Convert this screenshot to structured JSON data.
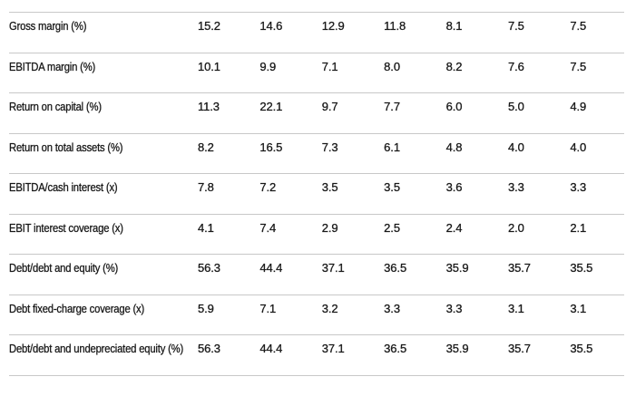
{
  "colors": {
    "text": "#191919",
    "divider": "#c8c8c8",
    "background": "#ffffff"
  },
  "chart_data": {
    "type": "table",
    "value_columns": 7,
    "column_headers_visible": false,
    "rows": [
      {
        "label": "Gross margin (%)",
        "values": [
          "15.2",
          "14.6",
          "12.9",
          "11.8",
          "8.1",
          "7.5",
          "7.5"
        ]
      },
      {
        "label": "EBITDA margin (%)",
        "values": [
          "10.1",
          "9.9",
          "7.1",
          "8.0",
          "8.2",
          "7.6",
          "7.5"
        ]
      },
      {
        "label": "Return on capital (%)",
        "values": [
          "11.3",
          "22.1",
          "9.7",
          "7.7",
          "6.0",
          "5.0",
          "4.9"
        ]
      },
      {
        "label": "Return on total assets (%)",
        "values": [
          "8.2",
          "16.5",
          "7.3",
          "6.1",
          "4.8",
          "4.0",
          "4.0"
        ]
      },
      {
        "label": "EBITDA/cash interest (x)",
        "values": [
          "7.8",
          "7.2",
          "3.5",
          "3.5",
          "3.6",
          "3.3",
          "3.3"
        ]
      },
      {
        "label": "EBIT interest coverage (x)",
        "values": [
          "4.1",
          "7.4",
          "2.9",
          "2.5",
          "2.4",
          "2.0",
          "2.1"
        ]
      },
      {
        "label": "Debt/debt and equity (%)",
        "values": [
          "56.3",
          "44.4",
          "37.1",
          "36.5",
          "35.9",
          "35.7",
          "35.5"
        ]
      },
      {
        "label": "Debt fixed-charge coverage (x)",
        "values": [
          "5.9",
          "7.1",
          "3.2",
          "3.3",
          "3.3",
          "3.1",
          "3.1"
        ]
      },
      {
        "label": "Debt/debt and undepreciated equity (%)",
        "values": [
          "56.3",
          "44.4",
          "37.1",
          "36.5",
          "35.9",
          "35.7",
          "35.5"
        ]
      }
    ]
  }
}
